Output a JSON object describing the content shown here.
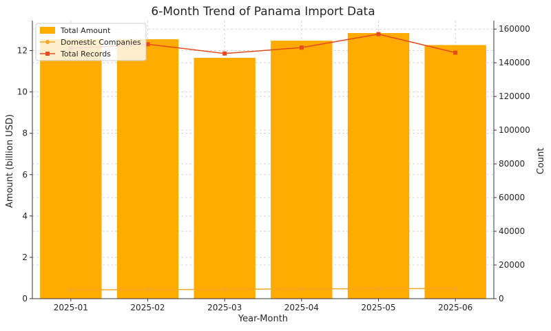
{
  "chart_data": {
    "type": "bar",
    "title": "6-Month Trend of Panama Import Data",
    "xlabel": "Year-Month",
    "ylabel": "Amount (billion USD)",
    "y2label": "Count",
    "categories": [
      "2025-01",
      "2025-02",
      "2025-03",
      "2025-04",
      "2025-05",
      "2025-06"
    ],
    "ylim": [
      0,
      13.45
    ],
    "y2lim": [
      0,
      165000
    ],
    "yticks": [
      0,
      2,
      4,
      6,
      8,
      10,
      12
    ],
    "y2ticks": [
      0,
      20000,
      40000,
      60000,
      80000,
      100000,
      120000,
      140000,
      160000
    ],
    "grid": true,
    "legend": "top-left",
    "series": [
      {
        "name": "Total Amount",
        "type": "bar",
        "axis": "left",
        "color": "#ffab00",
        "values": [
          12.55,
          12.55,
          11.65,
          12.48,
          12.85,
          12.27
        ]
      },
      {
        "name": "Domestic Companies",
        "type": "line",
        "axis": "right",
        "color": "#f6a623",
        "marker": "circle",
        "values": [
          5200,
          5400,
          5500,
          5800,
          5900,
          6000
        ]
      },
      {
        "name": "Total Records",
        "type": "line",
        "axis": "right",
        "color": "#e84a1f",
        "marker": "square",
        "values": [
          148500,
          151000,
          145500,
          149000,
          157000,
          146000
        ]
      }
    ]
  }
}
